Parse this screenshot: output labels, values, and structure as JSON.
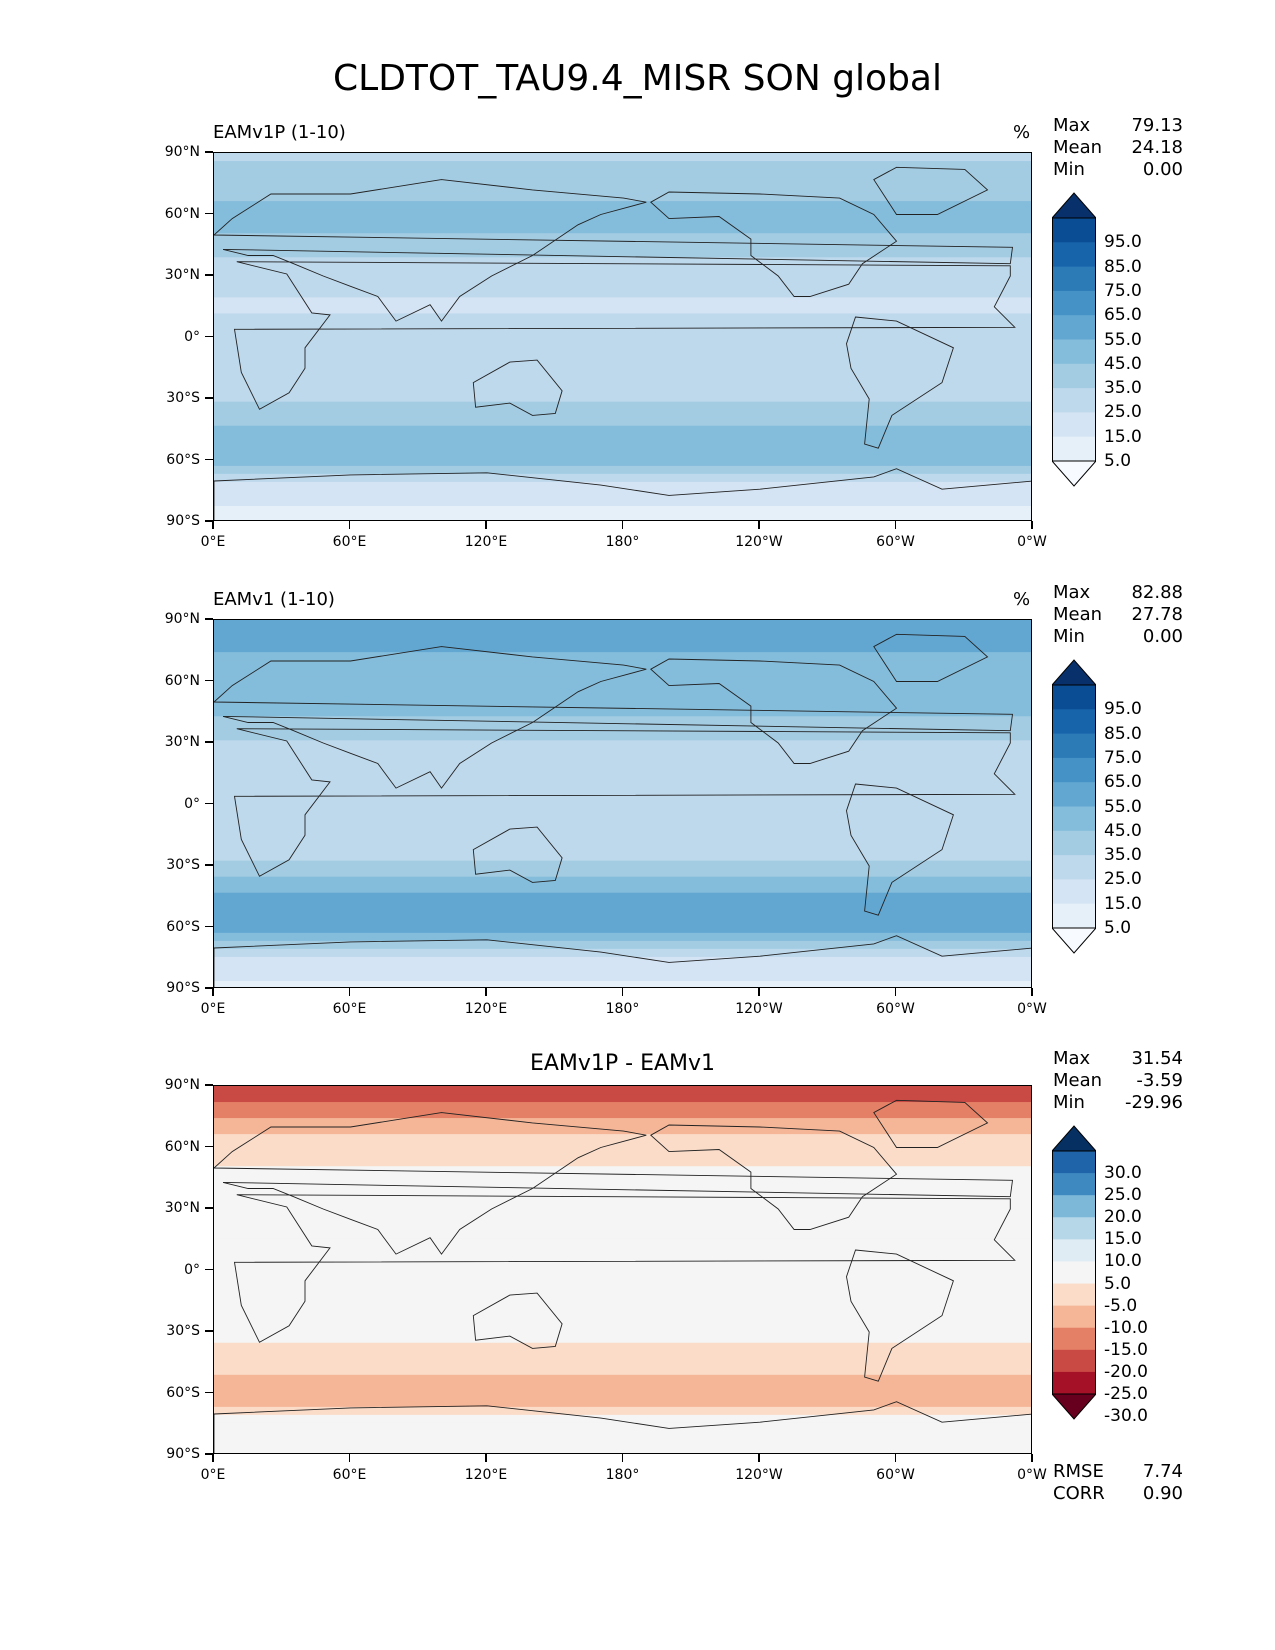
{
  "title": "CLDTOT_TAU9.4_MISR SON global",
  "x_ticks": [
    "0°E",
    "60°E",
    "120°E",
    "180°",
    "120°W",
    "60°W",
    "0°W"
  ],
  "y_ticks": [
    "90°N",
    "60°N",
    "30°N",
    "0°",
    "30°S",
    "60°S",
    "90°S"
  ],
  "panels": [
    {
      "title": "EAMv1P (1-10)",
      "unit": "%",
      "stats": [
        {
          "label": "Max",
          "value": "79.13"
        },
        {
          "label": "Mean",
          "value": "24.18"
        },
        {
          "label": "Min",
          "value": "0.00"
        }
      ],
      "colorbar_labels": [
        "95.0",
        "85.0",
        "75.0",
        "65.0",
        "55.0",
        "45.0",
        "35.0",
        "25.0",
        "15.0",
        "5.0"
      ],
      "extra": []
    },
    {
      "title": "EAMv1 (1-10)",
      "unit": "%",
      "stats": [
        {
          "label": "Max",
          "value": "82.88"
        },
        {
          "label": "Mean",
          "value": "27.78"
        },
        {
          "label": "Min",
          "value": "0.00"
        }
      ],
      "colorbar_labels": [
        "95.0",
        "85.0",
        "75.0",
        "65.0",
        "55.0",
        "45.0",
        "35.0",
        "25.0",
        "15.0",
        "5.0"
      ],
      "extra": []
    },
    {
      "title": "EAMv1P - EAMv1",
      "unit": "",
      "stats": [
        {
          "label": "Max",
          "value": "31.54"
        },
        {
          "label": "Mean",
          "value": "-3.59"
        },
        {
          "label": "Min",
          "value": "-29.96"
        }
      ],
      "colorbar_labels": [
        "30.0",
        "25.0",
        "20.0",
        "15.0",
        "10.0",
        "5.0",
        "-5.0",
        "-10.0",
        "-15.0",
        "-20.0",
        "-25.0",
        "-30.0"
      ],
      "extra": [
        {
          "label": "RMSE",
          "value": "7.74"
        },
        {
          "label": "CORR",
          "value": "0.90"
        }
      ]
    }
  ],
  "colors": {
    "blues": [
      "#f7fbff",
      "#e6f0f9",
      "#d4e4f4",
      "#bed8ec",
      "#a3cce3",
      "#84bcdb",
      "#62a7d2",
      "#4592c6",
      "#2c7bb6",
      "#1764ab",
      "#0b4d94",
      "#08306b"
    ],
    "diverging": [
      "#053061",
      "#1f63a8",
      "#3d89c0",
      "#7db8d8",
      "#b6d7e8",
      "#dfecf4",
      "#f5f5f5",
      "#fadcc9",
      "#f5b698",
      "#e48066",
      "#c94a45",
      "#a51127",
      "#67001f"
    ]
  },
  "chart_data": [
    {
      "type": "heatmap",
      "title": "EAMv1P (1-10)",
      "colorbar": "%",
      "zonal_profile": {
        "lat": [
          90,
          75,
          60,
          45,
          30,
          15,
          0,
          -15,
          -30,
          -45,
          -60,
          -75,
          -90
        ],
        "value": [
          22,
          30,
          38,
          32,
          18,
          14,
          18,
          16,
          22,
          38,
          42,
          8,
          2
        ]
      },
      "stats": {
        "max": 79.13,
        "mean": 24.18,
        "min": 0.0
      }
    },
    {
      "type": "heatmap",
      "title": "EAMv1 (1-10)",
      "colorbar": "%",
      "zonal_profile": {
        "lat": [
          90,
          75,
          60,
          45,
          30,
          15,
          0,
          -15,
          -30,
          -45,
          -60,
          -75,
          -90
        ],
        "value": [
          48,
          45,
          42,
          36,
          22,
          18,
          22,
          18,
          26,
          45,
          50,
          10,
          3
        ]
      },
      "stats": {
        "max": 82.88,
        "mean": 27.78,
        "min": 0.0
      }
    },
    {
      "type": "heatmap",
      "title": "EAMv1P - EAMv1",
      "zonal_profile": {
        "lat": [
          90,
          75,
          60,
          45,
          30,
          15,
          0,
          -15,
          -30,
          -45,
          -60,
          -75,
          -90
        ],
        "value": [
          -24,
          -16,
          -6,
          -4,
          -2,
          0,
          -1,
          -1,
          -3,
          -8,
          -14,
          -2,
          0
        ]
      },
      "stats": {
        "max": 31.54,
        "mean": -3.59,
        "min": -29.96,
        "rmse": 7.74,
        "corr": 0.9
      }
    }
  ]
}
